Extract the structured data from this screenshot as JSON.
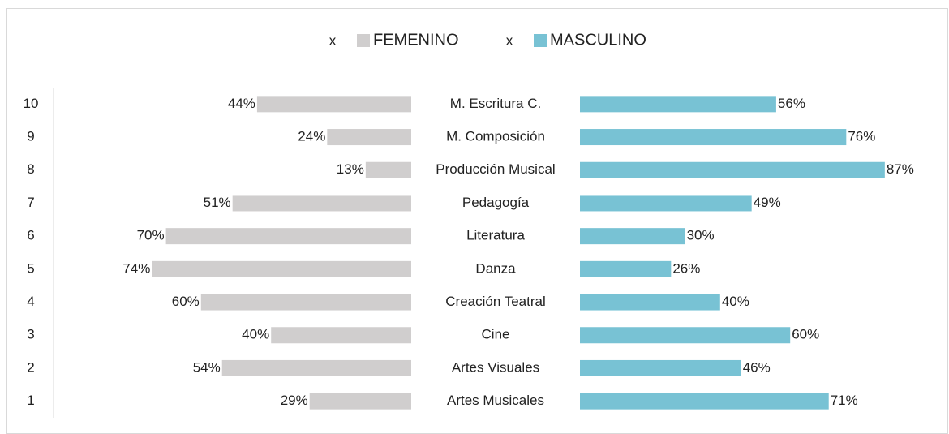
{
  "chart_data": {
    "type": "bar",
    "orientation": "horizontal",
    "layout": "diverging",
    "legend_markers": [
      "x",
      "x"
    ],
    "row_numbers": [
      10,
      9,
      8,
      7,
      6,
      5,
      4,
      3,
      2,
      1
    ],
    "categories": [
      "M. Escritura C.",
      "M. Composición",
      "Producción Musical",
      "Pedagogía",
      "Literatura",
      "Danza",
      "Creación Teatral",
      "Cine",
      "Artes Visuales",
      "Artes Musicales"
    ],
    "xlim": [
      0,
      100
    ],
    "series": [
      {
        "name": "FEMENINO",
        "color": "#d0cece",
        "side": "left",
        "values": [
          44,
          24,
          13,
          51,
          70,
          74,
          60,
          40,
          54,
          29
        ],
        "value_labels": [
          "44%",
          "24%",
          "13%",
          "51%",
          "70%",
          "74%",
          "60%",
          "40%",
          "54%",
          "29%"
        ]
      },
      {
        "name": "MASCULINO",
        "color": "#78c2d4",
        "side": "right",
        "values": [
          56,
          76,
          87,
          49,
          30,
          26,
          40,
          60,
          46,
          71
        ],
        "value_labels": [
          "56%",
          "76%",
          "87%",
          "49%",
          "30%",
          "26%",
          "40%",
          "60%",
          "46%",
          "71%"
        ]
      }
    ]
  }
}
